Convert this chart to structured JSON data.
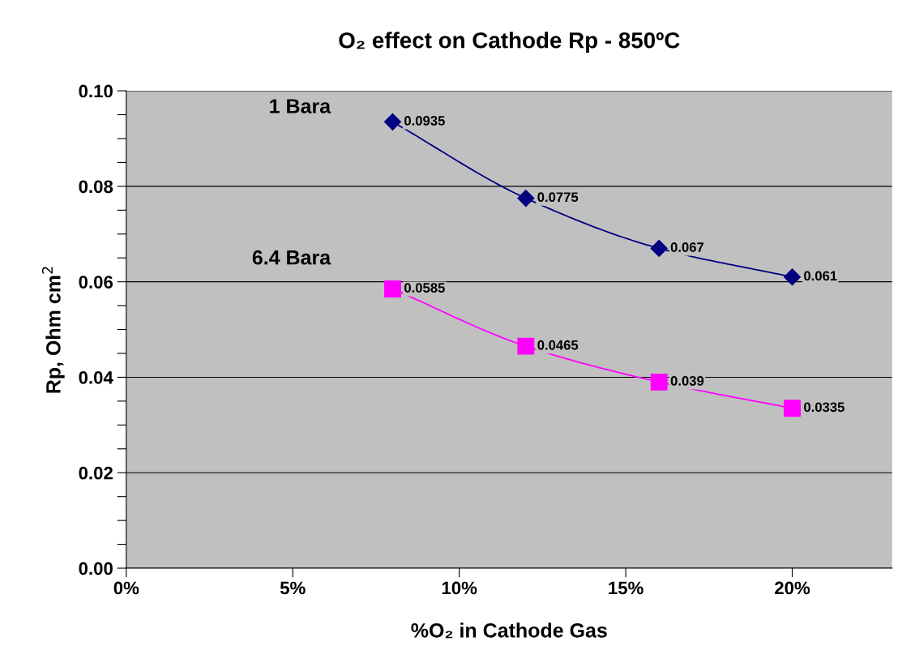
{
  "chart_data": {
    "type": "line",
    "title": "O₂ effect on Cathode Rp - 850ºC",
    "xlabel": "%O₂ in Cathode Gas",
    "ylabel": "Rp, Ohm cm$^{2}$",
    "x": [
      8,
      12,
      16,
      20
    ],
    "series": [
      {
        "name": "1 Bara",
        "color": "#000080",
        "marker": "diamond",
        "values": [
          0.0935,
          0.0775,
          0.067,
          0.061
        ]
      },
      {
        "name": "6.4 Bara",
        "color": "#ff00ff",
        "marker": "square",
        "values": [
          0.0585,
          0.0465,
          0.039,
          0.0335
        ]
      }
    ],
    "xlim": [
      0,
      23
    ],
    "xticks": [
      {
        "value": 0,
        "label": "0%"
      },
      {
        "value": 5,
        "label": "5%"
      },
      {
        "value": 10,
        "label": "10%"
      },
      {
        "value": 15,
        "label": "15%"
      },
      {
        "value": 20,
        "label": "20%"
      }
    ],
    "ylim": [
      0,
      0.1
    ],
    "yticks": [
      {
        "value": 0,
        "label": "0.00"
      },
      {
        "value": 0.005,
        "label": null
      },
      {
        "value": 0.01,
        "label": null
      },
      {
        "value": 0.015,
        "label": null
      },
      {
        "value": 0.02,
        "label": "0.02"
      },
      {
        "value": 0.025,
        "label": null
      },
      {
        "value": 0.03,
        "label": null
      },
      {
        "value": 0.035,
        "label": null
      },
      {
        "value": 0.04,
        "label": "0.04"
      },
      {
        "value": 0.045,
        "label": null
      },
      {
        "value": 0.05,
        "label": null
      },
      {
        "value": 0.055,
        "label": null
      },
      {
        "value": 0.06,
        "label": "0.06"
      },
      {
        "value": 0.065,
        "label": null
      },
      {
        "value": 0.07,
        "label": null
      },
      {
        "value": 0.075,
        "label": null
      },
      {
        "value": 0.08,
        "label": "0.08"
      },
      {
        "value": 0.085,
        "label": null
      },
      {
        "value": 0.09,
        "label": null
      },
      {
        "value": 0.095,
        "label": null
      },
      {
        "value": 0.1,
        "label": "0.10"
      }
    ],
    "grid": "y",
    "data_labels": true,
    "legend": false,
    "line_style": "solid"
  }
}
